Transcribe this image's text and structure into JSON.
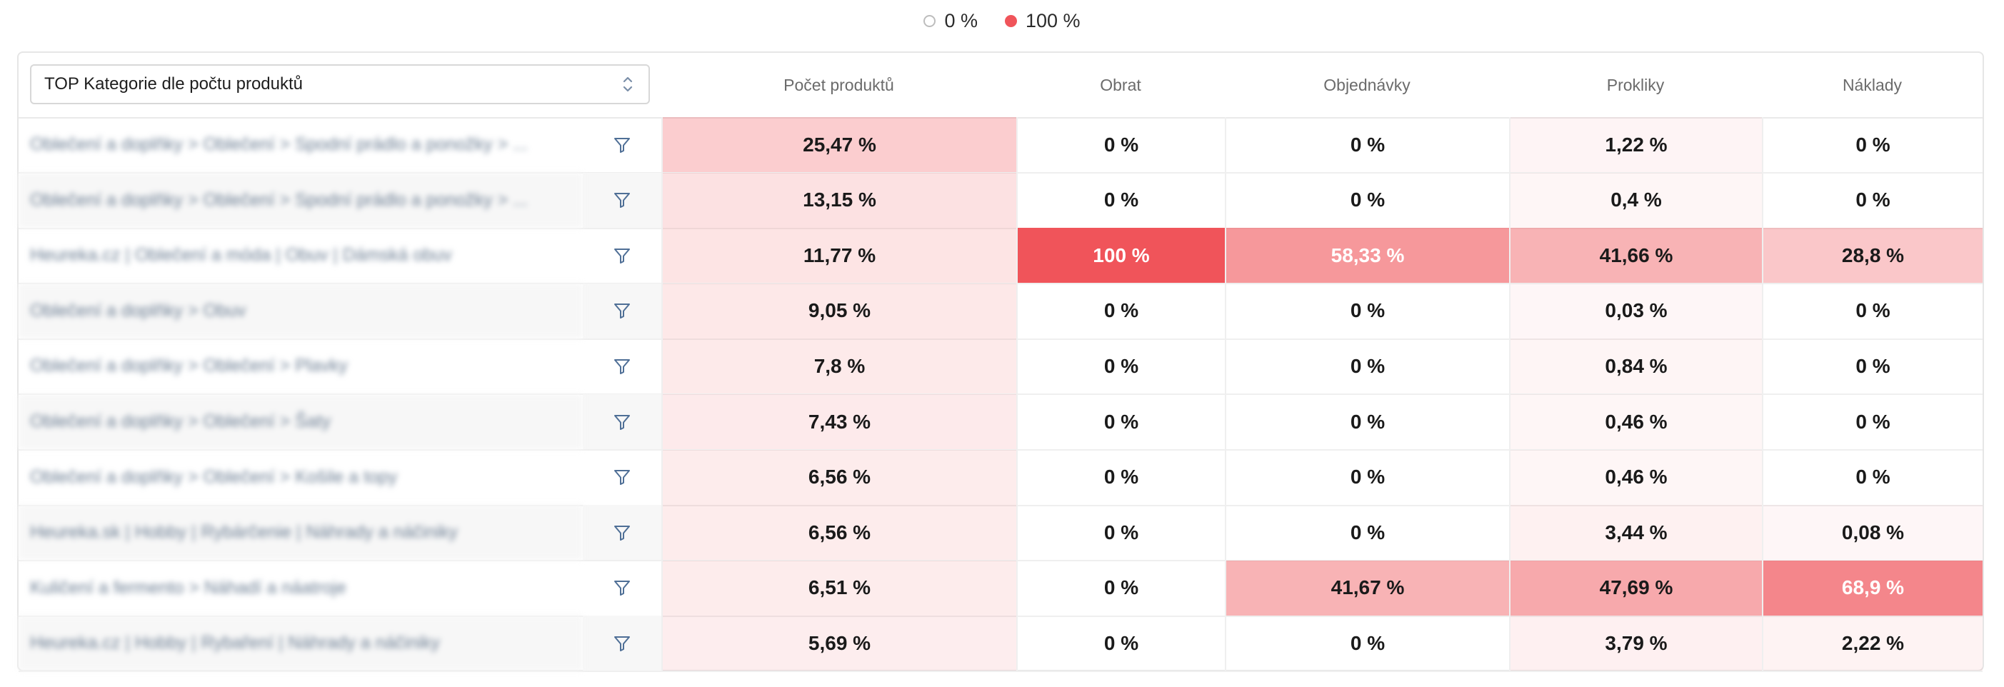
{
  "legend": {
    "min_label": "0 %",
    "max_label": "100 %",
    "max_color": "#f0545a"
  },
  "selector": {
    "value": "TOP Kategorie dle počtu produktů"
  },
  "columns": [
    "Počet produktů",
    "Obrat",
    "Objednávky",
    "Prokliky",
    "Náklady"
  ],
  "rows": [
    {
      "name": "Oblečení a doplňky > Oblečení > Spodní prádlo a ponožky > ...",
      "values": [
        "25,47 %",
        "0 %",
        "0 %",
        "1,22 %",
        "0 %"
      ],
      "shares": [
        25.47,
        0,
        0,
        1.22,
        0
      ]
    },
    {
      "name": "Oblečení a doplňky > Oblečení > Spodní prádlo a ponožky > ...",
      "values": [
        "13,15 %",
        "0 %",
        "0 %",
        "0,4 %",
        "0 %"
      ],
      "shares": [
        13.15,
        0,
        0,
        0.4,
        0
      ]
    },
    {
      "name": "Heureka.cz | Oblečení a móda | Obuv | Dámská obuv",
      "values": [
        "11,77 %",
        "100 %",
        "58,33 %",
        "41,66 %",
        "28,8 %"
      ],
      "shares": [
        11.77,
        100,
        58.33,
        41.66,
        28.8
      ]
    },
    {
      "name": "Oblečení a doplňky > Obuv",
      "values": [
        "9,05 %",
        "0 %",
        "0 %",
        "0,03 %",
        "0 %"
      ],
      "shares": [
        9.05,
        0,
        0,
        0.03,
        0
      ]
    },
    {
      "name": "Oblečení a doplňky > Oblečení > Plavky",
      "values": [
        "7,8 %",
        "0 %",
        "0 %",
        "0,84 %",
        "0 %"
      ],
      "shares": [
        7.8,
        0,
        0,
        0.84,
        0
      ]
    },
    {
      "name": "Oblečení a doplňky > Oblečení > Šaty",
      "values": [
        "7,43 %",
        "0 %",
        "0 %",
        "0,46 %",
        "0 %"
      ],
      "shares": [
        7.43,
        0,
        0,
        0.46,
        0
      ]
    },
    {
      "name": "Oblečení a doplňky > Oblečení > Košile a topy",
      "values": [
        "6,56 %",
        "0 %",
        "0 %",
        "0,46 %",
        "0 %"
      ],
      "shares": [
        6.56,
        0,
        0,
        0.46,
        0
      ]
    },
    {
      "name": "Heureka.sk | Hobby | Rybárčenie | Náhrady a náčiniky",
      "values": [
        "6,56 %",
        "0 %",
        "0 %",
        "3,44 %",
        "0,08 %"
      ],
      "shares": [
        6.56,
        0,
        0,
        3.44,
        0.08
      ]
    },
    {
      "name": "Kuličení a fermento > Náhadí a náatroje",
      "values": [
        "6,51 %",
        "0 %",
        "41,67 %",
        "47,69 %",
        "68,9 %"
      ],
      "shares": [
        6.51,
        0,
        41.67,
        47.69,
        68.9
      ]
    },
    {
      "name": "Heureka.cz | Hobby | Rybaření | Náhrady a náčiniky",
      "values": [
        "5,69 %",
        "0 %",
        "0 %",
        "3,79 %",
        "2,22 %"
      ],
      "shares": [
        5.69,
        0,
        0,
        3.79,
        2.22
      ]
    }
  ]
}
